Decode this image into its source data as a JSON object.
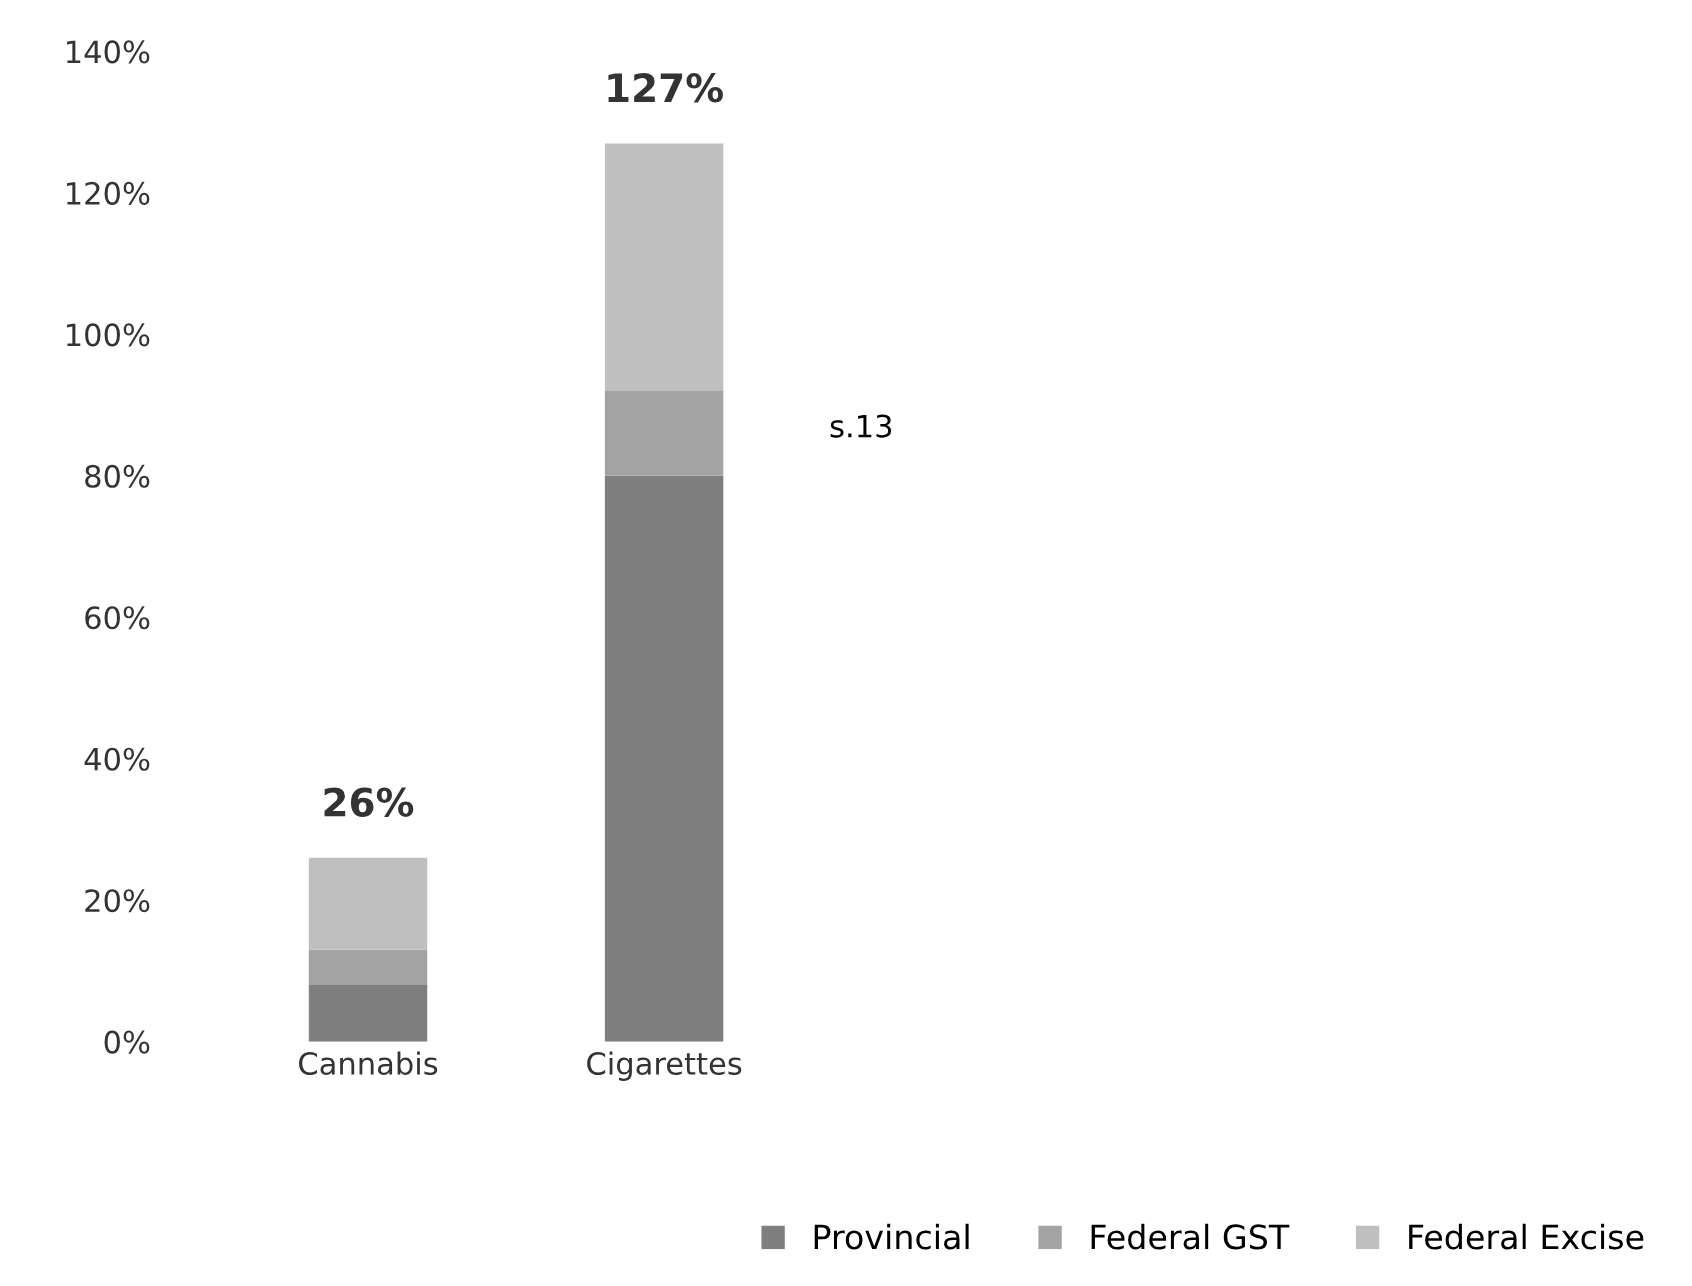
{
  "chart_data": {
    "type": "bar",
    "stacked": true,
    "categories": [
      "Cannabis",
      "Cigarettes"
    ],
    "series": [
      {
        "name": "Provincial",
        "color": "#7f7f7f",
        "values": [
          8,
          80
        ]
      },
      {
        "name": "Federal GST",
        "color": "#a3a3a3",
        "values": [
          5,
          12
        ]
      },
      {
        "name": "Federal Excise",
        "color": "#bfbfbf",
        "values": [
          13,
          35
        ]
      }
    ],
    "totals": [
      "26%",
      "127%"
    ],
    "ylim": [
      0,
      140
    ],
    "yticks": [
      {
        "value": 0,
        "label": "0%"
      },
      {
        "value": 20,
        "label": "20%"
      },
      {
        "value": 40,
        "label": "40%"
      },
      {
        "value": 60,
        "label": "60%"
      },
      {
        "value": 80,
        "label": "80%"
      },
      {
        "value": 100,
        "label": "100%"
      },
      {
        "value": 120,
        "label": "120%"
      },
      {
        "value": 140,
        "label": "140%"
      }
    ],
    "legend": "bottom right",
    "annotations": [
      "s.13"
    ]
  }
}
